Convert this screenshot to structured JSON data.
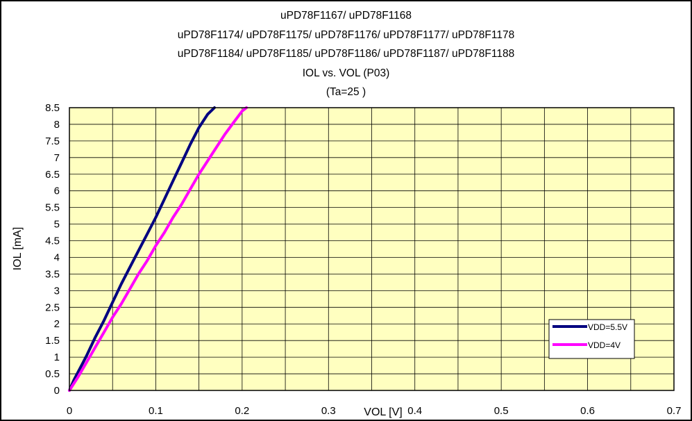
{
  "chart_data": {
    "type": "line",
    "title_lines": [
      "uPD78F1167/ uPD78F1168",
      "uPD78F1174/ uPD78F1175/ uPD78F1176/ uPD78F1177/ uPD78F1178",
      "uPD78F1184/ uPD78F1185/ uPD78F1186/ uPD78F1187/ uPD78F1188",
      "IOL vs. VOL (P03)",
      "(Ta=25 )"
    ],
    "xlabel": "VOL [V]",
    "ylabel": "IOL [mA]",
    "xlim": [
      0,
      0.7
    ],
    "ylim": [
      0,
      8.5
    ],
    "x_ticks": [
      "0",
      "0.1",
      "0.2",
      "0.3",
      "0.4",
      "0.5",
      "0.6",
      "0.7"
    ],
    "y_ticks": [
      "0",
      "0.5",
      "1",
      "1.5",
      "2",
      "2.5",
      "3",
      "3.5",
      "4",
      "4.5",
      "5",
      "5.5",
      "6",
      "6.5",
      "7",
      "7.5",
      "8",
      "8.5"
    ],
    "x_minor_step": 0.05,
    "y_step": 0.5,
    "grid": true,
    "plot_background": "#ffffc0",
    "legend_position": "bottom-right",
    "series": [
      {
        "name": "VDD=5.5V",
        "color": "#000080",
        "x": [
          0,
          0.005,
          0.01,
          0.015,
          0.02,
          0.03,
          0.04,
          0.05,
          0.06,
          0.07,
          0.08,
          0.09,
          0.1,
          0.11,
          0.12,
          0.13,
          0.14,
          0.15,
          0.16,
          0.168
        ],
        "y": [
          0,
          0.3,
          0.55,
          0.8,
          1.05,
          1.6,
          2.1,
          2.65,
          3.2,
          3.7,
          4.2,
          4.7,
          5.2,
          5.75,
          6.3,
          6.85,
          7.4,
          7.9,
          8.3,
          8.5
        ]
      },
      {
        "name": "VDD=4V",
        "color": "#ff00ff",
        "x": [
          0,
          0.01,
          0.02,
          0.03,
          0.04,
          0.05,
          0.06,
          0.07,
          0.08,
          0.09,
          0.1,
          0.11,
          0.12,
          0.13,
          0.14,
          0.15,
          0.16,
          0.17,
          0.18,
          0.19,
          0.2,
          0.205
        ],
        "y": [
          0,
          0.4,
          0.85,
          1.3,
          1.75,
          2.2,
          2.6,
          3.05,
          3.5,
          3.9,
          4.35,
          4.75,
          5.2,
          5.6,
          6.05,
          6.5,
          6.9,
          7.3,
          7.7,
          8.05,
          8.4,
          8.5
        ]
      }
    ]
  }
}
